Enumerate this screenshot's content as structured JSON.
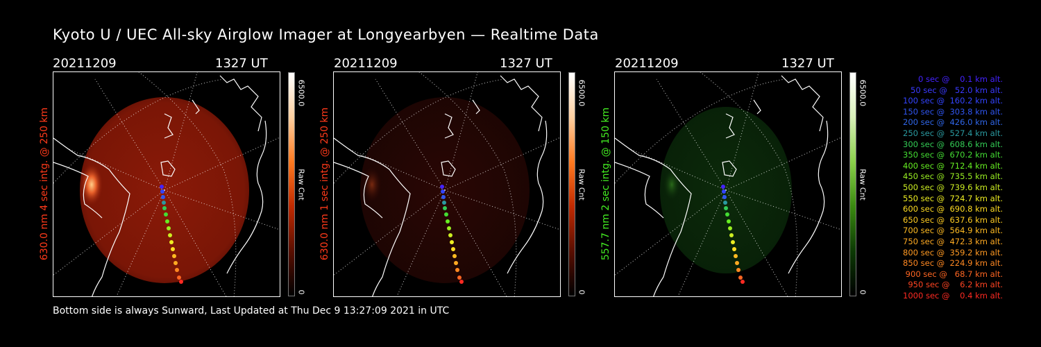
{
  "title": "Kyoto U / UEC All-sky Airglow Imager at Longyearbyen — Realtime Data",
  "footer": "Bottom side is always Sunward, Last Updated at Thu Dec  9 13:27:09 2021 in UTC",
  "colors": {
    "background": "#000000",
    "red_label": "#ff3a1a",
    "green_label": "#44ee22"
  },
  "panels": [
    {
      "date": "20211209",
      "time": "1327 UT",
      "ylabel": "630.0 nm 4 sec intg. @ 250 km",
      "cbar_max": "6500.0",
      "cbar_min": "0",
      "cbar_unit": "Raw Cnt"
    },
    {
      "date": "20211209",
      "time": "1327 UT",
      "ylabel": "630.0 nm 1 sec intg. @ 250 km",
      "cbar_max": "6500.0",
      "cbar_min": "0",
      "cbar_unit": "Raw Cnt"
    },
    {
      "date": "20211209",
      "time": "1327 UT",
      "ylabel": "557.7 nm 2 sec intg. @ 150 km",
      "cbar_max": "6500.0",
      "cbar_min": "0",
      "cbar_unit": "Raw Cnt"
    }
  ],
  "legend": [
    {
      "text": "   0 sec @    0.1 km alt.",
      "color": "#4422ff"
    },
    {
      "text": "  50 sec @   52.0 km alt.",
      "color": "#3a3aff"
    },
    {
      "text": " 100 sec @  160.2 km alt.",
      "color": "#3344ff"
    },
    {
      "text": " 150 sec @  303.8 km alt.",
      "color": "#2f55f0"
    },
    {
      "text": " 200 sec @  426.0 km alt.",
      "color": "#2f66e8"
    },
    {
      "text": " 250 sec @  527.4 km alt.",
      "color": "#2a9aa0"
    },
    {
      "text": " 300 sec @  608.6 km alt.",
      "color": "#33cc55"
    },
    {
      "text": " 350 sec @  670.2 km alt.",
      "color": "#44dd33"
    },
    {
      "text": " 400 sec @  712.4 km alt.",
      "color": "#66ee22"
    },
    {
      "text": " 450 sec @  735.5 km alt.",
      "color": "#99ee22"
    },
    {
      "text": " 500 sec @  739.6 km alt.",
      "color": "#ccee22"
    },
    {
      "text": " 550 sec @  724.7 km alt.",
      "color": "#eeee22"
    },
    {
      "text": " 600 sec @  690.8 km alt.",
      "color": "#ffdd22"
    },
    {
      "text": " 650 sec @  637.6 km alt.",
      "color": "#ffcc22"
    },
    {
      "text": " 700 sec @  564.9 km alt.",
      "color": "#ffbb22"
    },
    {
      "text": " 750 sec @  472.3 km alt.",
      "color": "#ffaa22"
    },
    {
      "text": " 800 sec @  359.2 km alt.",
      "color": "#ff9922"
    },
    {
      "text": " 850 sec @  224.9 km alt.",
      "color": "#ff8822"
    },
    {
      "text": " 900 sec @   68.7 km alt.",
      "color": "#ff6622"
    },
    {
      "text": " 950 sec @    6.2 km alt.",
      "color": "#ff4422"
    },
    {
      "text": "1000 sec @    0.4 km alt.",
      "color": "#ff2a22"
    }
  ]
}
